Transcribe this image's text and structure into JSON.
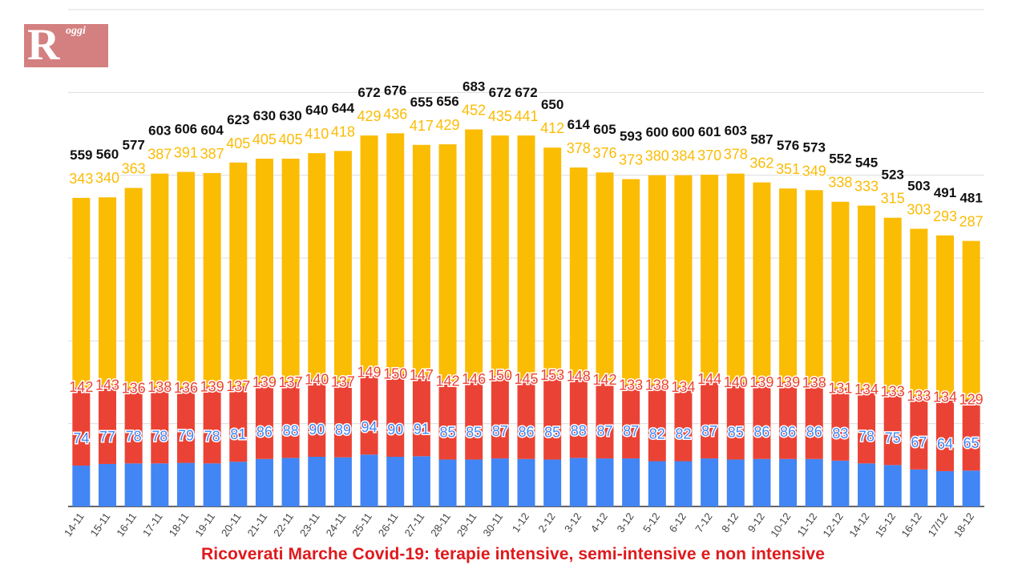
{
  "logo": {
    "letter": "R",
    "word": "oggi"
  },
  "caption": "Ricoverati Marche Covid-19: terapie intensive, semi-intensive e non intensive",
  "colors": {
    "intensive": "#4285f4",
    "semi_intensive": "#ea4335",
    "non_intensive": "#fbbc04",
    "total_label": "#111111",
    "grid": "#dddddd",
    "axis": "#333333"
  },
  "chart_data": {
    "type": "bar",
    "stacked": true,
    "grid": true,
    "categories": [
      "14-11",
      "15-11",
      "16-11",
      "17-11",
      "18-11",
      "19-11",
      "20-11",
      "21-11",
      "22-11",
      "23-11",
      "24-11",
      "25-11",
      "26-11",
      "27-11",
      "28-11",
      "29-11",
      "30-11",
      "1-12",
      "2-12",
      "3-12",
      "4-12",
      "3-12",
      "5-12",
      "6-12",
      "7-12",
      "8-12",
      "9-12",
      "10-12",
      "11-12",
      "12-12",
      "14-12",
      "15-12",
      "16-12",
      "17/12",
      "18-12"
    ],
    "series": [
      {
        "key": "intensive",
        "values": [
          74,
          77,
          78,
          78,
          79,
          78,
          81,
          86,
          88,
          90,
          89,
          94,
          90,
          91,
          85,
          85,
          87,
          86,
          85,
          88,
          87,
          87,
          82,
          82,
          87,
          85,
          86,
          86,
          86,
          83,
          78,
          75,
          67,
          64,
          65
        ]
      },
      {
        "key": "semi_intensive",
        "values": [
          142,
          143,
          136,
          138,
          136,
          139,
          137,
          139,
          137,
          140,
          137,
          149,
          150,
          147,
          142,
          146,
          150,
          145,
          153,
          148,
          142,
          133,
          138,
          134,
          144,
          140,
          139,
          139,
          138,
          131,
          134,
          133,
          133,
          134,
          129
        ]
      },
      {
        "key": "non_intensive",
        "values": [
          343,
          340,
          363,
          387,
          391,
          387,
          405,
          405,
          405,
          410,
          418,
          429,
          436,
          417,
          429,
          452,
          435,
          441,
          412,
          378,
          376,
          373,
          380,
          384,
          370,
          378,
          362,
          351,
          349,
          338,
          333,
          315,
          303,
          293,
          287
        ]
      }
    ],
    "totals": [
      559,
      560,
      577,
      603,
      606,
      604,
      623,
      630,
      630,
      640,
      644,
      672,
      676,
      655,
      656,
      683,
      672,
      672,
      650,
      614,
      605,
      593,
      600,
      600,
      601,
      603,
      587,
      576,
      573,
      552,
      545,
      523,
      503,
      491,
      481
    ],
    "ylim": [
      0,
      900
    ]
  }
}
